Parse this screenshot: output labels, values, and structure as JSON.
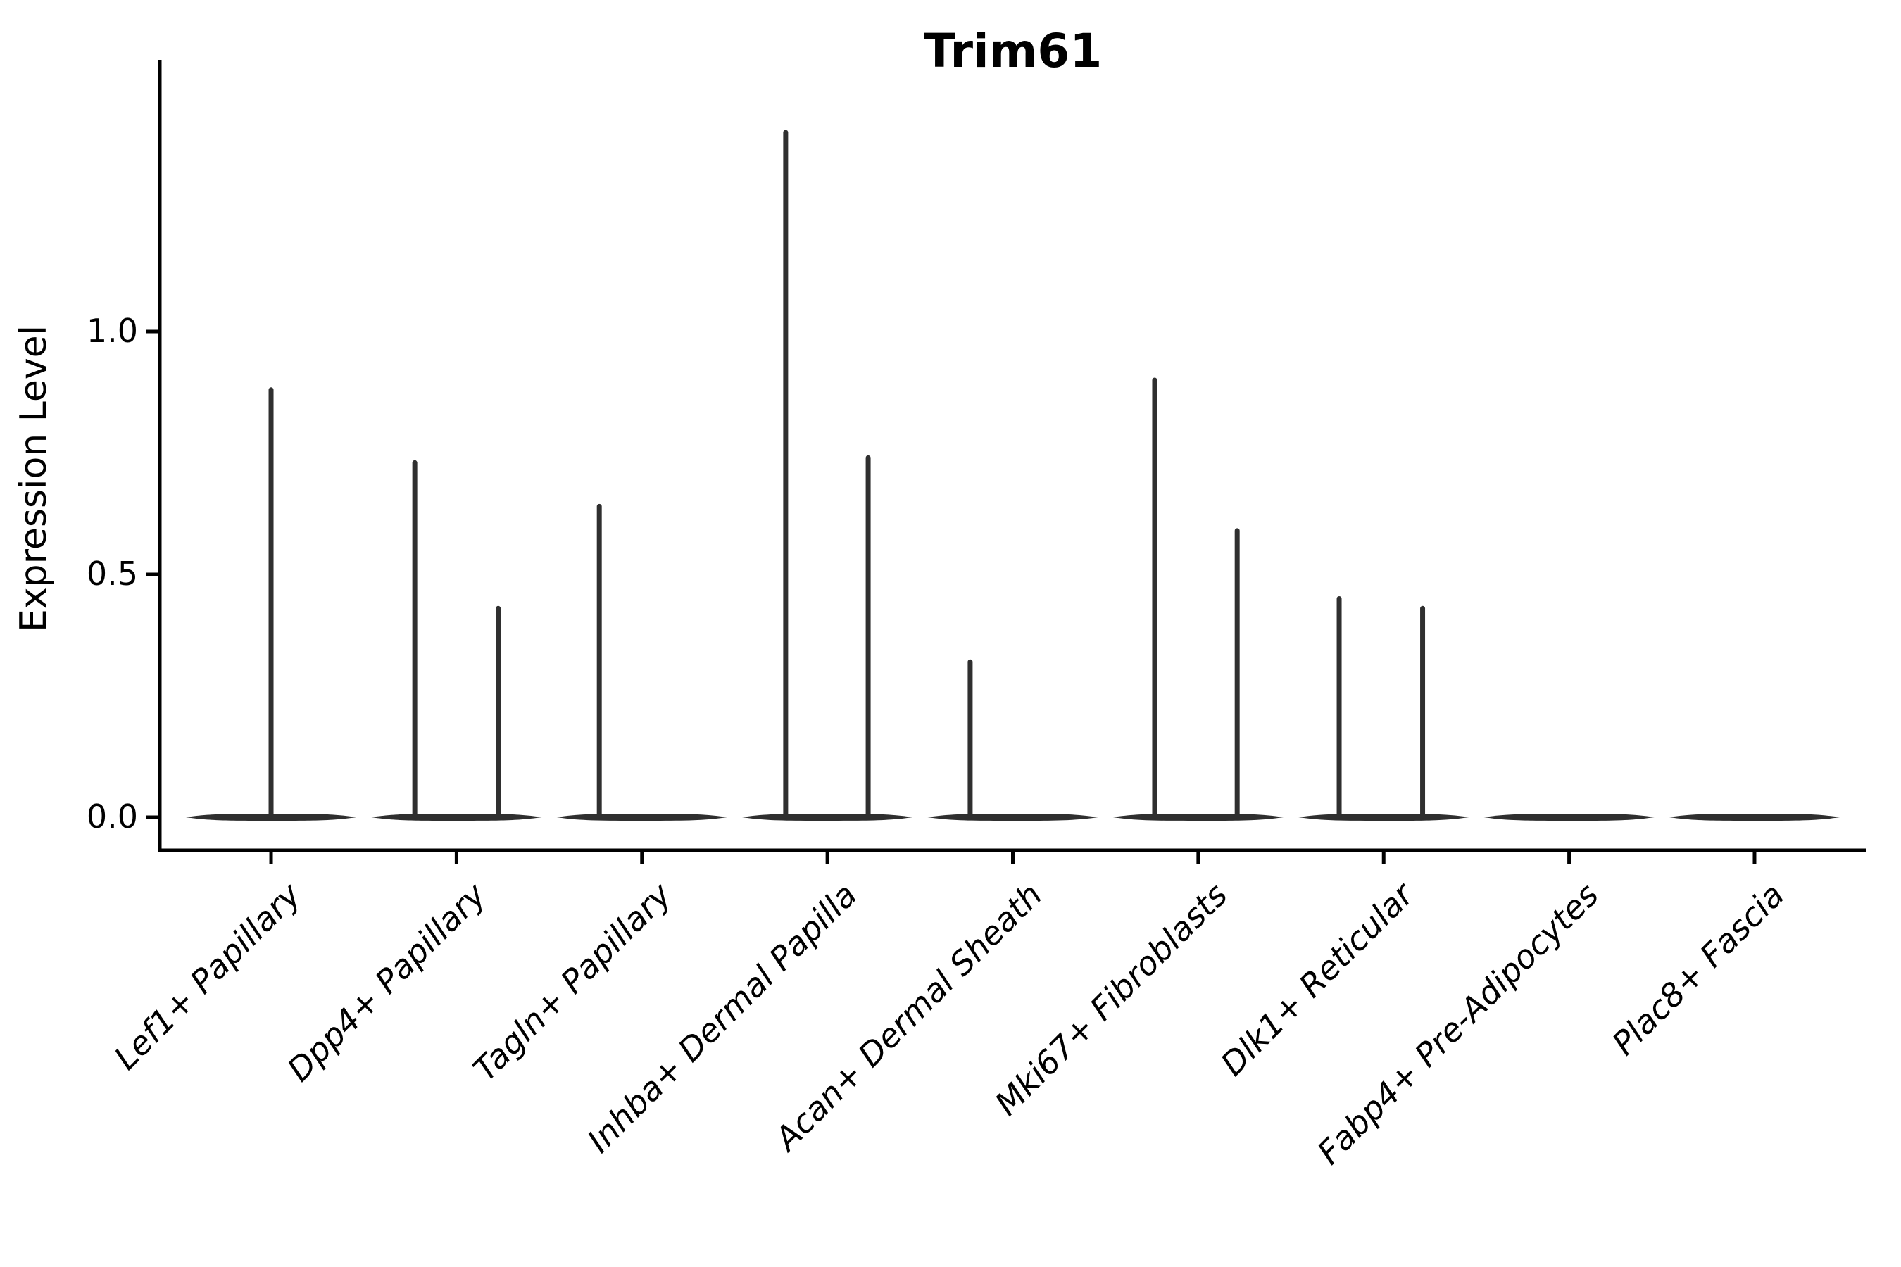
{
  "figure": {
    "background": "#ffffff"
  },
  "chart_data": {
    "type": "violin",
    "title": "Trim61",
    "ylabel": "Expression Level",
    "xlabel": "",
    "grid": false,
    "legend": "none",
    "ylim": [
      -0.07,
      1.56
    ],
    "ytick_values": [
      0.0,
      0.5,
      1.0
    ],
    "ytick_labels": [
      "0.0",
      "0.5",
      "1.0"
    ],
    "categories": [
      "Lef1+ Papillary",
      "Dpp4+ Papillary",
      "Tagln+ Papillary",
      "Inhba+ Dermal Papilla",
      "Acan+ Dermal Sheath",
      "Mki67+ Fibroblasts",
      "Dlk1+ Reticular",
      "Fabp4+ Pre-Adipocytes",
      "Plac8+ Fascia"
    ],
    "violin_halfwidth_units": 0.46,
    "baseline_value": 0.0,
    "series": [
      {
        "name": "Lef1+ Papillary",
        "spikes": [
          {
            "dx_units": 0.0,
            "value": 0.88
          }
        ]
      },
      {
        "name": "Dpp4+ Papillary",
        "spikes": [
          {
            "dx_units": -0.225,
            "value": 0.73
          },
          {
            "dx_units": 0.225,
            "value": 0.43
          }
        ]
      },
      {
        "name": "Tagln+ Papillary",
        "spikes": [
          {
            "dx_units": -0.23,
            "value": 0.64
          }
        ]
      },
      {
        "name": "Inhba+ Dermal Papilla",
        "spikes": [
          {
            "dx_units": -0.225,
            "value": 1.41
          },
          {
            "dx_units": 0.22,
            "value": 0.74
          }
        ]
      },
      {
        "name": "Acan+ Dermal Sheath",
        "spikes": [
          {
            "dx_units": -0.23,
            "value": 0.32
          }
        ]
      },
      {
        "name": "Mki67+ Fibroblasts",
        "spikes": [
          {
            "dx_units": -0.235,
            "value": 0.9
          },
          {
            "dx_units": 0.21,
            "value": 0.59
          }
        ]
      },
      {
        "name": "Dlk1+ Reticular",
        "spikes": [
          {
            "dx_units": -0.24,
            "value": 0.45
          },
          {
            "dx_units": 0.21,
            "value": 0.43
          }
        ]
      },
      {
        "name": "Fabp4+ Pre-Adipocytes",
        "spikes": []
      },
      {
        "name": "Plac8+ Fascia",
        "spikes": []
      }
    ],
    "style": {
      "line_color": "#2f2f2f",
      "spine_color": "#000000",
      "text_color": "#000000"
    }
  }
}
